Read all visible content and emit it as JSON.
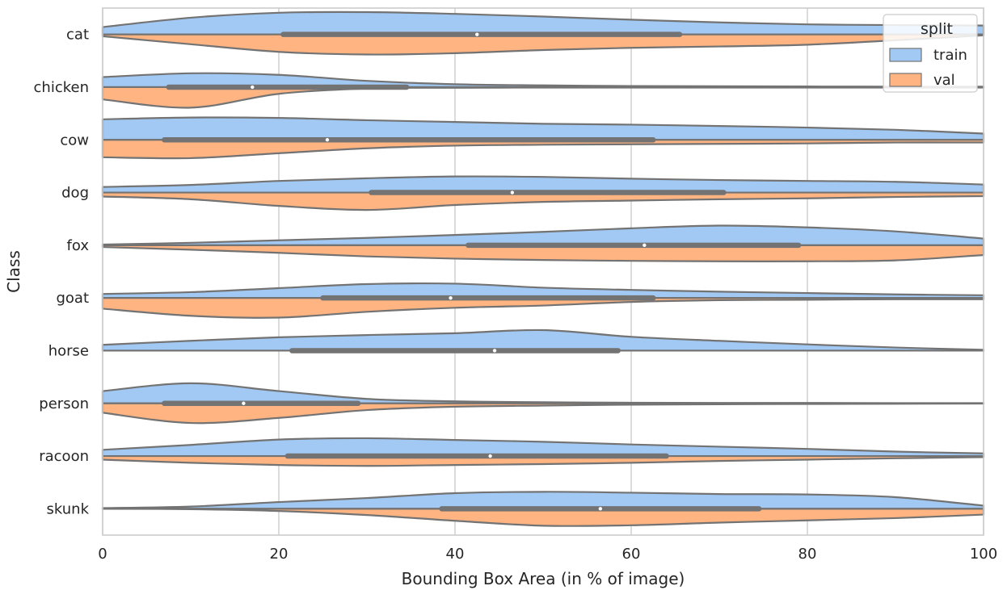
{
  "chart_data": {
    "type": "violin",
    "orientation": "horizontal",
    "split": true,
    "xlabel": "Bounding Box Area (in % of image)",
    "ylabel": "Class",
    "xlim": [
      0,
      100
    ],
    "xticks": [
      0,
      20,
      40,
      60,
      80,
      100
    ],
    "grid": "vertical",
    "legend": {
      "title": "split",
      "position": "top-right",
      "entries": [
        "train",
        "val"
      ]
    },
    "colors": {
      "train": "#a1c9f4",
      "val": "#ffb482",
      "outline": "#737373",
      "grid": "#cccccc",
      "median": "#ffffff"
    },
    "categories": [
      "cat",
      "chicken",
      "cow",
      "dog",
      "fox",
      "goat",
      "horse",
      "person",
      "racoon",
      "skunk"
    ],
    "series": [
      {
        "name": "train",
        "density_x": [
          0,
          10,
          20,
          30,
          40,
          50,
          60,
          70,
          80,
          90,
          100
        ],
        "densities": [
          [
            0.33,
            0.75,
            0.97,
            1.0,
            0.92,
            0.8,
            0.66,
            0.54,
            0.45,
            0.42,
            0.4
          ],
          [
            0.45,
            0.62,
            0.55,
            0.28,
            0.13,
            0.08,
            0.05,
            0.04,
            0.03,
            0.02,
            0.02
          ],
          [
            0.92,
            1.0,
            0.98,
            0.88,
            0.8,
            0.72,
            0.68,
            0.62,
            0.55,
            0.45,
            0.28
          ],
          [
            0.25,
            0.34,
            0.52,
            0.64,
            0.72,
            0.7,
            0.62,
            0.56,
            0.52,
            0.48,
            0.36
          ],
          [
            0.03,
            0.11,
            0.22,
            0.33,
            0.46,
            0.6,
            0.76,
            0.88,
            0.8,
            0.62,
            0.3
          ],
          [
            0.18,
            0.26,
            0.44,
            0.62,
            0.64,
            0.46,
            0.36,
            0.28,
            0.22,
            0.16,
            0.12
          ],
          [
            0.26,
            0.44,
            0.6,
            0.7,
            0.78,
            0.92,
            0.62,
            0.44,
            0.28,
            0.14,
            0.04
          ],
          [
            0.55,
            0.9,
            0.55,
            0.2,
            0.09,
            0.05,
            0.03,
            0.02,
            0.02,
            0.01,
            0.01
          ],
          [
            0.28,
            0.5,
            0.74,
            0.8,
            0.72,
            0.64,
            0.52,
            0.42,
            0.32,
            0.2,
            0.12
          ],
          [
            0.03,
            0.1,
            0.3,
            0.48,
            0.7,
            0.76,
            0.72,
            0.66,
            0.64,
            0.52,
            0.14
          ]
        ],
        "box": [
          {
            "q1": 20.5,
            "median": 42.5,
            "q3": 65.5
          },
          {
            "q1": 7.5,
            "median": 17.0,
            "q3": 34.5
          },
          {
            "q1": 7.0,
            "median": 25.5,
            "q3": 62.5
          },
          {
            "q1": 30.5,
            "median": 46.5,
            "q3": 70.5
          },
          {
            "q1": 41.5,
            "median": 61.5,
            "q3": 79.0
          },
          {
            "q1": 25.0,
            "median": 39.5,
            "q3": 62.5
          },
          {
            "q1": 21.5,
            "median": 44.5,
            "q3": 58.5
          },
          {
            "q1": 7.0,
            "median": 16.0,
            "q3": 29.0
          },
          {
            "q1": 21.0,
            "median": 44.0,
            "q3": 64.0
          },
          {
            "q1": 38.5,
            "median": 56.5,
            "q3": 74.5
          }
        ]
      },
      {
        "name": "val",
        "density_x": [
          0,
          10,
          20,
          30,
          40,
          50,
          60,
          70,
          80,
          90,
          100
        ],
        "densities": [
          [
            0.08,
            0.44,
            0.78,
            0.9,
            0.84,
            0.7,
            0.6,
            0.54,
            0.46,
            0.26,
            0.04
          ],
          [
            0.55,
            0.92,
            0.3,
            0.06,
            0.03,
            0.02,
            0.02,
            0.02,
            0.02,
            0.02,
            0.02
          ],
          [
            0.78,
            0.82,
            0.6,
            0.38,
            0.26,
            0.22,
            0.2,
            0.18,
            0.16,
            0.12,
            0.12
          ],
          [
            0.18,
            0.3,
            0.6,
            0.78,
            0.56,
            0.42,
            0.36,
            0.3,
            0.26,
            0.2,
            0.16
          ],
          [
            0.08,
            0.2,
            0.34,
            0.5,
            0.6,
            0.66,
            0.7,
            0.72,
            0.72,
            0.68,
            0.44
          ],
          [
            0.48,
            0.8,
            0.88,
            0.62,
            0.44,
            0.34,
            0.18,
            0.1,
            0.08,
            0.06,
            0.06
          ],
          [
            0.0,
            0.0,
            0.0,
            0.0,
            0.0,
            0.0,
            0.0,
            0.0,
            0.0,
            0.0,
            0.0
          ],
          [
            0.42,
            0.88,
            0.65,
            0.3,
            0.15,
            0.1,
            0.06,
            0.04,
            0.03,
            0.02,
            0.01
          ],
          [
            0.16,
            0.3,
            0.4,
            0.44,
            0.4,
            0.36,
            0.3,
            0.22,
            0.16,
            0.1,
            0.05
          ],
          [
            0.0,
            0.02,
            0.1,
            0.28,
            0.54,
            0.76,
            0.74,
            0.62,
            0.52,
            0.42,
            0.26
          ]
        ],
        "box": [
          {
            "q1": 20.5,
            "median": 42.5,
            "q3": 65.5
          },
          {
            "q1": 7.5,
            "median": 17.0,
            "q3": 34.5
          },
          {
            "q1": 7.0,
            "median": 25.5,
            "q3": 62.5
          },
          {
            "q1": 30.5,
            "median": 46.5,
            "q3": 70.5
          },
          {
            "q1": 41.5,
            "median": 61.5,
            "q3": 79.0
          },
          {
            "q1": 25.0,
            "median": 39.5,
            "q3": 62.5
          },
          {
            "q1": 21.5,
            "median": 44.5,
            "q3": 58.5
          },
          {
            "q1": 7.0,
            "median": 16.0,
            "q3": 29.0
          },
          {
            "q1": 21.0,
            "median": 44.0,
            "q3": 64.0
          },
          {
            "q1": 38.5,
            "median": 56.5,
            "q3": 74.5
          }
        ]
      }
    ]
  }
}
